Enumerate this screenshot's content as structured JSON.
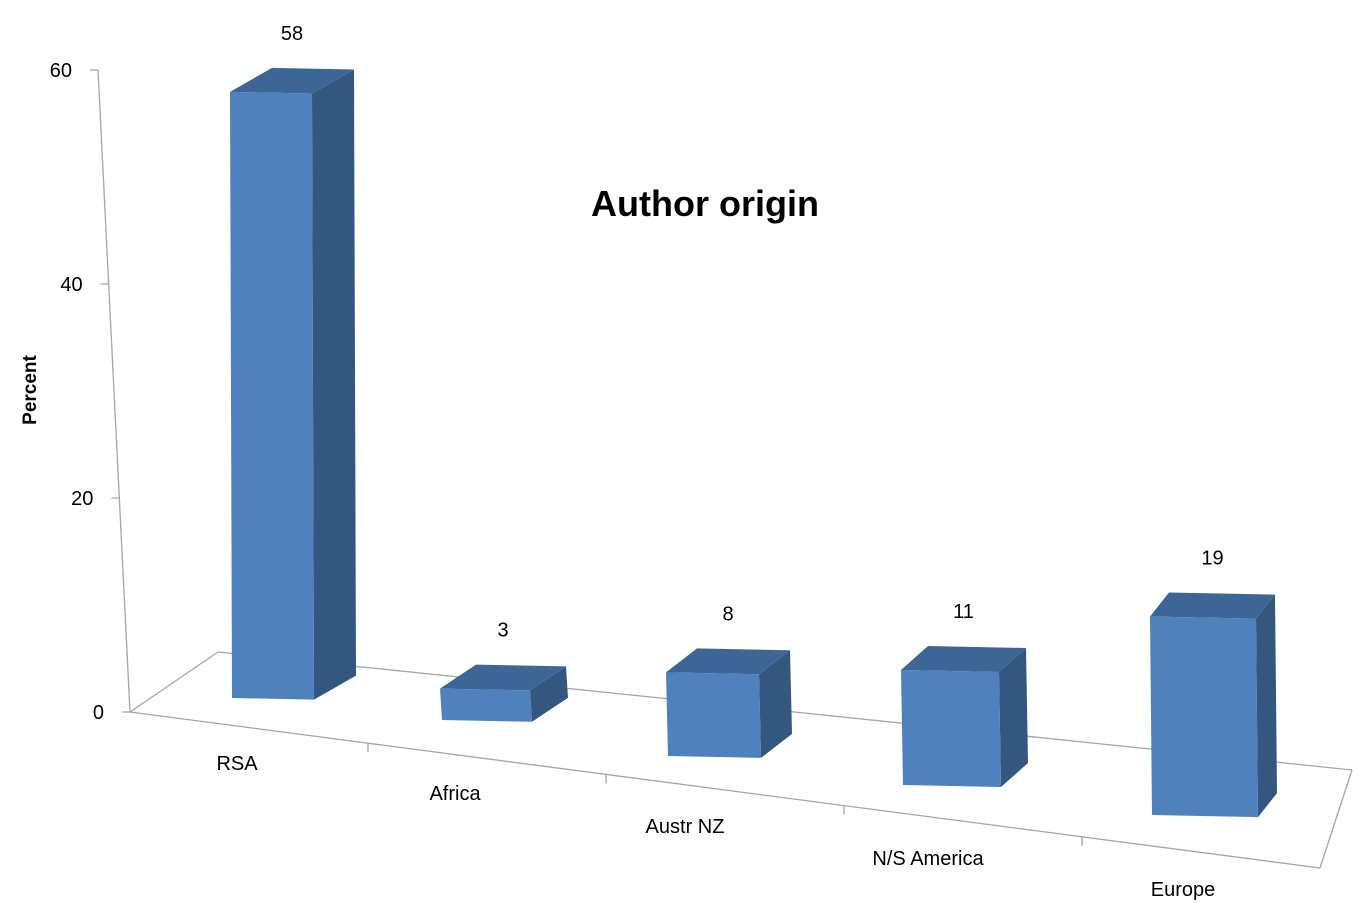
{
  "chart_data": {
    "type": "bar",
    "title": "Author origin",
    "xlabel": "",
    "ylabel": "Percent",
    "categories": [
      "RSA",
      "Africa",
      "Austr NZ",
      "N/S America",
      "Europe"
    ],
    "values": [
      58,
      3,
      8,
      11,
      19
    ],
    "data_labels": [
      "58",
      "3",
      "8",
      "11",
      "19"
    ],
    "yticks": [
      0,
      20,
      40,
      60
    ],
    "ytick_labels": [
      "0",
      "20",
      "40",
      "60"
    ],
    "ylim": [
      0,
      60
    ],
    "grid": false,
    "legend": "none",
    "style": "3d-column"
  },
  "colors": {
    "bar_front": "#4f81bd",
    "bar_top": "#3d6697",
    "bar_side": "#34577f",
    "axis": "#a6a6a6"
  }
}
